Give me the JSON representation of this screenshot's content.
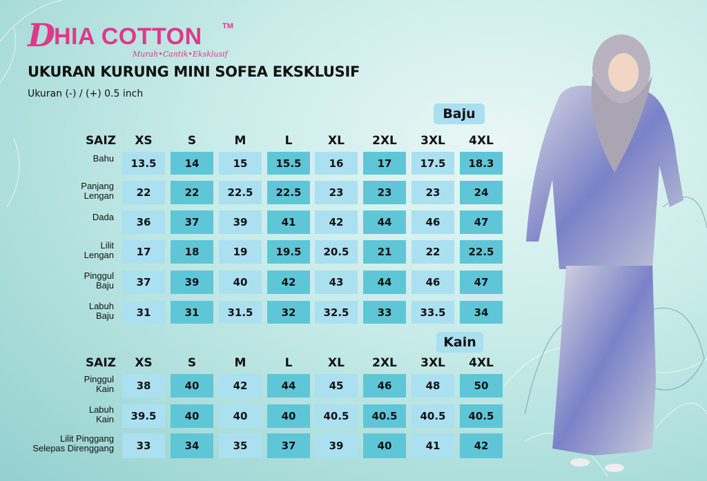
{
  "brand": {
    "logo_letter": "D",
    "name": "HIA COTTON",
    "tm": "TM",
    "tagline": "Murah•Cantik•Eksklusif"
  },
  "title": "UKURAN KURUNG MINI SOFEA EKSKLUSIF",
  "subtitle": "Ukuran (-) / (+) 0.5 inch",
  "colors": {
    "cell_light": "#abe0f1",
    "cell_dark": "#5fc6d8",
    "brand": "#e0388a"
  },
  "baju": {
    "label": "Baju",
    "saiz": "SAIZ",
    "sizes": [
      "XS",
      "S",
      "M",
      "L",
      "XL",
      "2XL",
      "3XL",
      "4XL"
    ],
    "rows": [
      {
        "label": [
          "Bahu"
        ],
        "values": [
          "13.5",
          "14",
          "15",
          "15.5",
          "16",
          "17",
          "17.5",
          "18.3"
        ]
      },
      {
        "label": [
          "Panjang",
          "Lengan"
        ],
        "values": [
          "22",
          "22",
          "22.5",
          "22.5",
          "23",
          "23",
          "23",
          "24"
        ]
      },
      {
        "label": [
          "Dada"
        ],
        "values": [
          "36",
          "37",
          "39",
          "41",
          "42",
          "44",
          "46",
          "47"
        ]
      },
      {
        "label": [
          "Lilit",
          "Lengan"
        ],
        "values": [
          "17",
          "18",
          "19",
          "19.5",
          "20.5",
          "21",
          "22",
          "22.5"
        ]
      },
      {
        "label": [
          "Pinggul",
          "Baju"
        ],
        "values": [
          "37",
          "39",
          "40",
          "42",
          "43",
          "44",
          "46",
          "47"
        ]
      },
      {
        "label": [
          "Labuh",
          "Baju"
        ],
        "values": [
          "31",
          "31",
          "31.5",
          "32",
          "32.5",
          "33",
          "33.5",
          "34"
        ]
      }
    ]
  },
  "kain": {
    "label": "Kain",
    "saiz": "SAIZ",
    "sizes": [
      "XS",
      "S",
      "M",
      "L",
      "XL",
      "2XL",
      "3XL",
      "4XL"
    ],
    "rows": [
      {
        "label": [
          "Pinggul",
          "Kain"
        ],
        "values": [
          "38",
          "40",
          "42",
          "44",
          "45",
          "46",
          "48",
          "50"
        ]
      },
      {
        "label": [
          "Labuh",
          "Kain"
        ],
        "values": [
          "39.5",
          "40",
          "40",
          "40",
          "40.5",
          "40.5",
          "40.5",
          "40.5"
        ]
      },
      {
        "label": [
          "Lilit Pinggang",
          "Selepas Direnggang"
        ],
        "values": [
          "33",
          "34",
          "35",
          "37",
          "39",
          "40",
          "41",
          "42"
        ]
      }
    ]
  }
}
